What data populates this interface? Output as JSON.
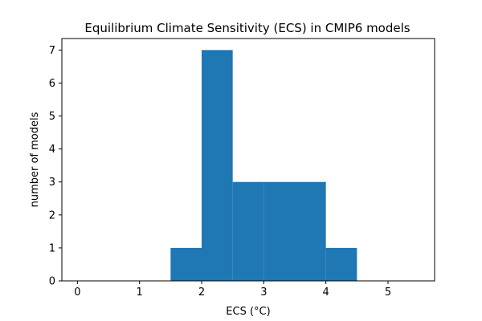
{
  "chart_data": {
    "type": "bar",
    "title": "Equilibrium Climate Sensitivity (ECS) in CMIP6 models",
    "xlabel": "ECS (°C)",
    "ylabel": "number of models",
    "bins": [
      {
        "x_start": 1.5,
        "x_end": 2.0,
        "count": 1
      },
      {
        "x_start": 2.0,
        "x_end": 2.5,
        "count": 7
      },
      {
        "x_start": 2.5,
        "x_end": 3.0,
        "count": 3
      },
      {
        "x_start": 3.0,
        "x_end": 3.5,
        "count": 3
      },
      {
        "x_start": 3.5,
        "x_end": 4.0,
        "count": 3
      },
      {
        "x_start": 4.0,
        "x_end": 4.5,
        "count": 1
      }
    ],
    "xlim": [
      -0.25,
      5.75
    ],
    "ylim": [
      0,
      7.35
    ],
    "xticks": [
      0,
      1,
      2,
      3,
      4,
      5
    ],
    "yticks": [
      0,
      1,
      2,
      3,
      4,
      5,
      6,
      7
    ],
    "bar_color": "#1f77b4",
    "grid": false,
    "legend": "none"
  }
}
